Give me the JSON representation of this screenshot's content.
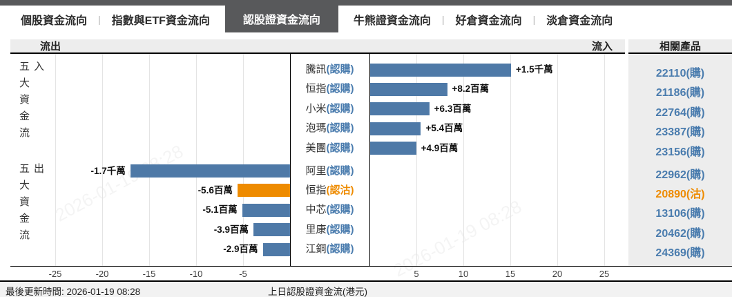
{
  "tabs": {
    "separator": "|",
    "items": [
      {
        "label": "個股資金流向",
        "active": false
      },
      {
        "label": "指數與ETF資金流向",
        "active": false
      },
      {
        "label": "認股證資金流向",
        "active": true
      },
      {
        "label": "牛熊證資金流向",
        "active": false
      },
      {
        "label": "好倉資金流向",
        "active": false
      },
      {
        "label": "淡倉資金流向",
        "active": false
      }
    ]
  },
  "chart_header": {
    "outflow_label": "流出",
    "inflow_label": "流入",
    "products_label": "相關產品"
  },
  "axis_groups": {
    "inflow_label": "五大資金流入",
    "outflow_label": "五大資金流出"
  },
  "chart_data": {
    "type": "bar",
    "orientation": "horizontal-butterfly",
    "title": "上日認股證資金流(港元)",
    "unit": "百萬 (millions HKD)",
    "xlim": [
      -27.5,
      27.5
    ],
    "x_ticks_negative": [
      -25,
      -20,
      -15,
      -10,
      -5
    ],
    "x_ticks_positive": [
      5,
      10,
      15,
      20,
      25
    ],
    "grid": true,
    "colors": {
      "call_blue": "#4e79a7",
      "put_orange": "#ee8b00",
      "link_blue": "#4a7cae"
    },
    "rows": [
      {
        "name": "騰訊",
        "suffix": "(認購)",
        "value": 15,
        "value_label": "+1.5千萬",
        "product": "22110(購)",
        "accent": "call",
        "group": "inflow"
      },
      {
        "name": "恒指",
        "suffix": "(認購)",
        "value": 8.2,
        "value_label": "+8.2百萬",
        "product": "21186(購)",
        "accent": "call",
        "group": "inflow"
      },
      {
        "name": "小米",
        "suffix": "(認購)",
        "value": 6.3,
        "value_label": "+6.3百萬",
        "product": "22764(購)",
        "accent": "call",
        "group": "inflow"
      },
      {
        "name": "泡瑪",
        "suffix": "(認購)",
        "value": 5.4,
        "value_label": "+5.4百萬",
        "product": "23387(購)",
        "accent": "call",
        "group": "inflow"
      },
      {
        "name": "美團",
        "suffix": "(認購)",
        "value": 4.9,
        "value_label": "+4.9百萬",
        "product": "23156(購)",
        "accent": "call",
        "group": "inflow"
      },
      {
        "name": "阿里",
        "suffix": "(認購)",
        "value": -17,
        "value_label": "-1.7千萬",
        "product": "22962(購)",
        "accent": "call",
        "group": "outflow"
      },
      {
        "name": "恒指",
        "suffix": "(認沽)",
        "value": -5.6,
        "value_label": "-5.6百萬",
        "product": "20890(沽)",
        "accent": "put",
        "group": "outflow"
      },
      {
        "name": "中芯",
        "suffix": "(認購)",
        "value": -5.1,
        "value_label": "-5.1百萬",
        "product": "13106(購)",
        "accent": "call",
        "group": "outflow"
      },
      {
        "name": "里康",
        "suffix": "(認購)",
        "value": -3.9,
        "value_label": "-3.9百萬",
        "product": "20462(購)",
        "accent": "call",
        "group": "outflow"
      },
      {
        "name": "江銅",
        "suffix": "(認購)",
        "value": -2.9,
        "value_label": "-2.9百萬",
        "product": "24369(購)",
        "accent": "call",
        "group": "outflow"
      }
    ]
  },
  "footer": {
    "updated_label": "最後更新時間:",
    "updated_value": "2026-01-19 08:28",
    "caption": "上日認股證資金流(港元)"
  },
  "watermark": "2026-01-19 08:28"
}
